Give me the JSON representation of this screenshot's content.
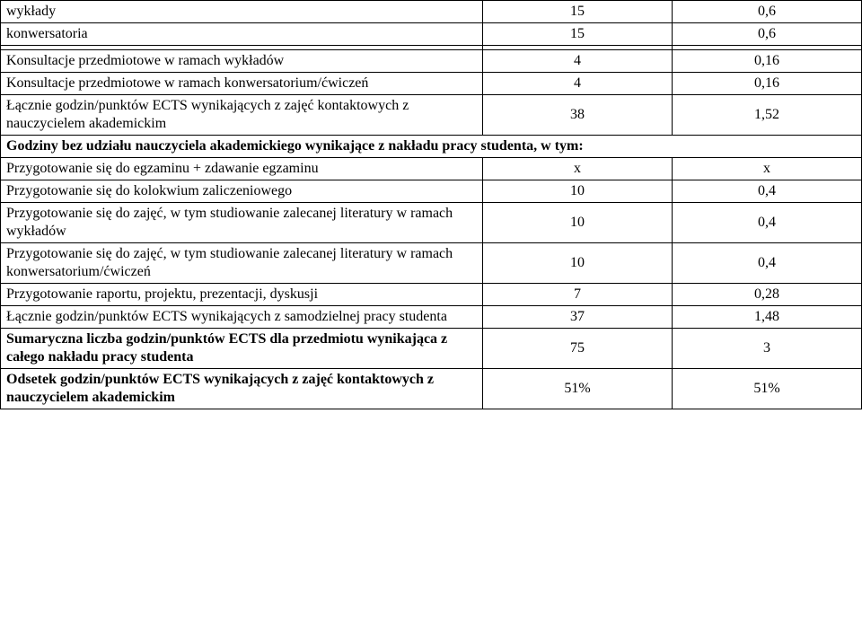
{
  "rows": {
    "r1": {
      "label": "wykłady",
      "v1": "15",
      "v2": "0,6"
    },
    "r2": {
      "label": "konwersatoria",
      "v1": "15",
      "v2": "0,6"
    },
    "r3": {
      "label": "Konsultacje przedmiotowe w ramach wykładów",
      "v1": "4",
      "v2": "0,16"
    },
    "r4": {
      "label": "Konsultacje przedmiotowe w ramach konwersatorium/ćwiczeń",
      "v1": "4",
      "v2": "0,16"
    },
    "r5": {
      "label": "Łącznie godzin/punktów ECTS wynikających z zajęć kontaktowych z nauczycielem akademickim",
      "v1": "38",
      "v2": "1,52"
    },
    "sec": {
      "label": "Godziny bez udziału nauczyciela akademickiego wynikające z nakładu pracy studenta, w tym:"
    },
    "r6": {
      "label": "Przygotowanie się do egzaminu + zdawanie egzaminu",
      "v1": "x",
      "v2": "x"
    },
    "r7": {
      "label": "Przygotowanie się do kolokwium zaliczeniowego",
      "v1": "10",
      "v2": "0,4"
    },
    "r8": {
      "label": "Przygotowanie się do zajęć, w tym studiowanie zalecanej literatury w ramach wykładów",
      "v1": "10",
      "v2": "0,4"
    },
    "r9": {
      "label": "Przygotowanie się do zajęć, w tym studiowanie zalecanej literatury w ramach konwersatorium/ćwiczeń",
      "v1": "10",
      "v2": "0,4"
    },
    "r10": {
      "label": "Przygotowanie raportu, projektu, prezentacji, dyskusji",
      "v1": "7",
      "v2": "0,28"
    },
    "r11": {
      "label": "Łącznie godzin/punktów ECTS wynikających z samodzielnej pracy studenta",
      "v1": "37",
      "v2": "1,48"
    },
    "r12": {
      "label": "Sumaryczna liczba godzin/punktów ECTS dla przedmiotu wynikająca z całego nakładu pracy studenta",
      "v1": "75",
      "v2": "3"
    },
    "r13": {
      "label": "Odsetek godzin/punktów ECTS wynikających z zajęć kontaktowych z nauczycielem akademickim",
      "v1": "51%",
      "v2": "51%"
    }
  },
  "style": {
    "font_family": "Times New Roman",
    "font_size_pt": 12,
    "border_color": "#000000",
    "background_color": "#ffffff",
    "text_color": "#000000",
    "col_widths_percent": [
      56,
      22,
      22
    ]
  }
}
